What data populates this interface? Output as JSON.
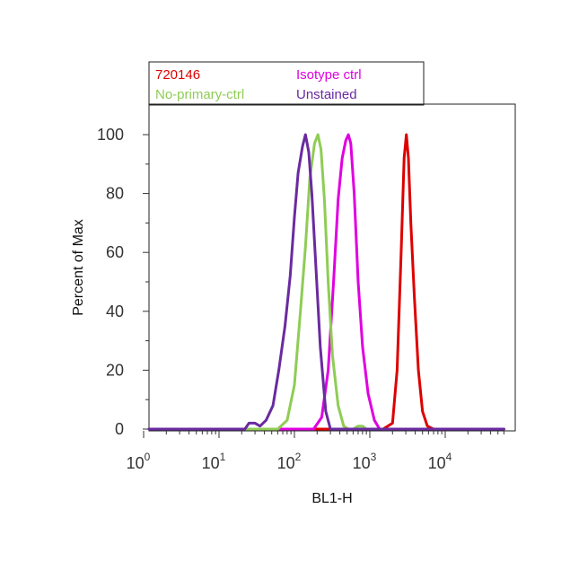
{
  "chart_data": {
    "type": "line",
    "xlabel": "BL1-H",
    "ylabel": "Percent of Max",
    "x_scale": "log",
    "xlim": [
      1,
      60000
    ],
    "ylim": [
      0,
      110
    ],
    "y_ticks": [
      0,
      20,
      40,
      60,
      80,
      100
    ],
    "y_tick_labels": [
      "0",
      "20",
      "40",
      "60",
      "80",
      "100"
    ],
    "x_ticks": [
      1,
      10,
      100,
      1000,
      10000
    ],
    "x_tick_base": [
      "10",
      "10",
      "10",
      "10",
      "10"
    ],
    "x_tick_exp": [
      "0",
      "1",
      "2",
      "3",
      "4"
    ],
    "grid": false,
    "legend_placement": "top-left, above plot",
    "series": [
      {
        "name": "720146",
        "color": "#dd0000",
        "x": [
          1,
          1500,
          2000,
          2300,
          2600,
          2850,
          3050,
          3250,
          3500,
          3900,
          4400,
          5000,
          5800,
          7000,
          60000
        ],
        "y": [
          0,
          0,
          2,
          20,
          60,
          92,
          100,
          92,
          70,
          45,
          20,
          6,
          1,
          0,
          0
        ]
      },
      {
        "name": "Isotype ctrl",
        "color": "#e000e0",
        "x": [
          1,
          180,
          230,
          280,
          330,
          380,
          430,
          480,
          520,
          560,
          620,
          700,
          800,
          950,
          1150,
          1350,
          60000
        ],
        "y": [
          0,
          0,
          4,
          20,
          50,
          78,
          92,
          98,
          100,
          97,
          80,
          50,
          28,
          12,
          3,
          0,
          0
        ]
      },
      {
        "name": "No-primary-ctrl",
        "color": "#8fcc55",
        "x": [
          1,
          60,
          80,
          100,
          120,
          140,
          160,
          185,
          205,
          225,
          250,
          280,
          320,
          380,
          450,
          520,
          600,
          700,
          800,
          900,
          60000
        ],
        "y": [
          0,
          0,
          3,
          15,
          40,
          62,
          85,
          97,
          100,
          95,
          78,
          50,
          25,
          8,
          1,
          0,
          0,
          1,
          1,
          0,
          0
        ]
      },
      {
        "name": "Unstained",
        "color": "#6a2aa0",
        "x": [
          1,
          22,
          25,
          30,
          35,
          42,
          52,
          62,
          75,
          88,
          100,
          112,
          128,
          140,
          155,
          170,
          190,
          220,
          260,
          300,
          60000
        ],
        "y": [
          0,
          0,
          2,
          2,
          1,
          3,
          8,
          20,
          35,
          52,
          72,
          87,
          96,
          100,
          94,
          80,
          58,
          28,
          6,
          0,
          0
        ]
      }
    ]
  }
}
